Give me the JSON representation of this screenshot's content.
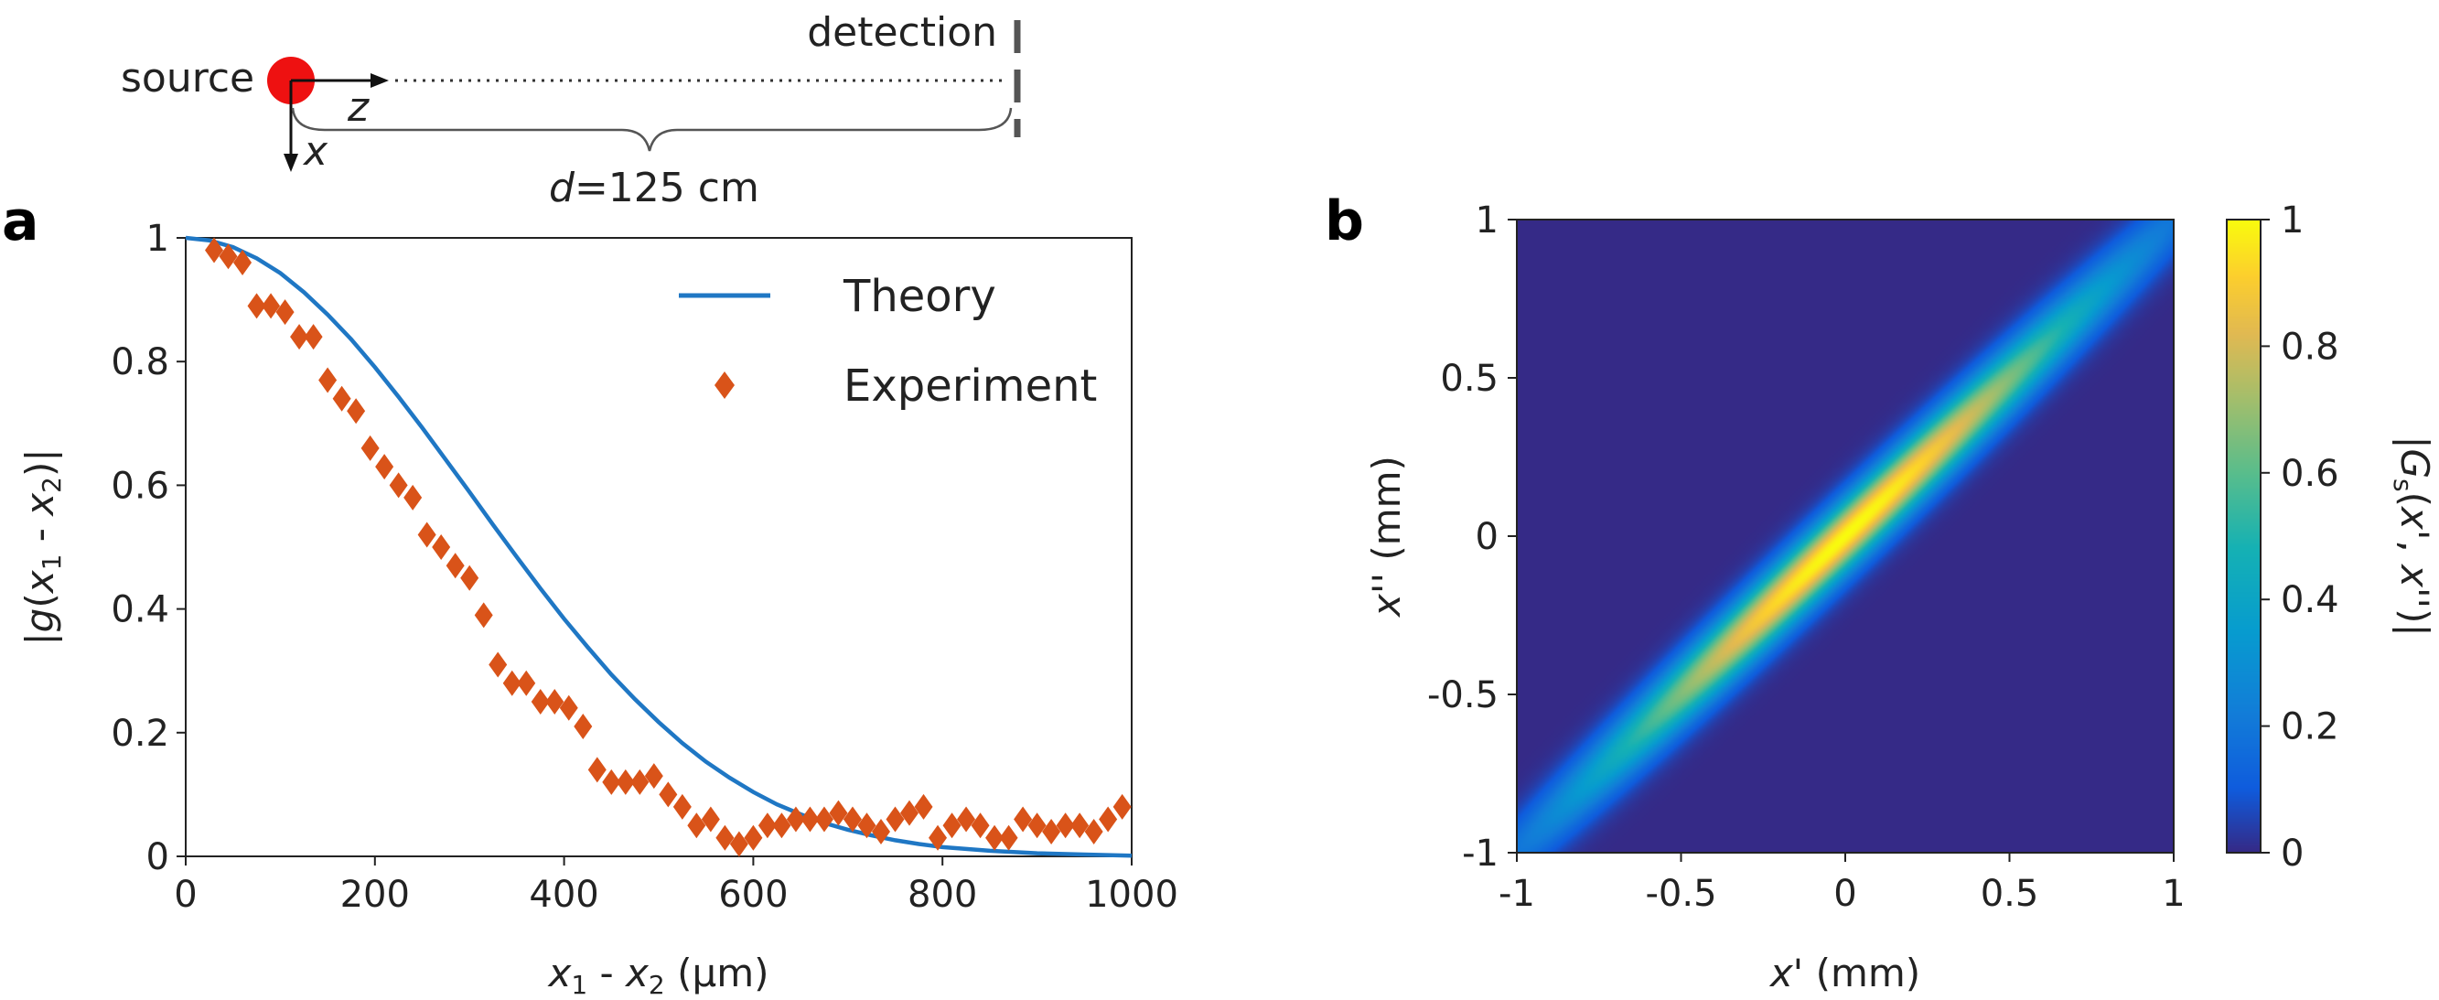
{
  "diagram": {
    "source_label": "source",
    "detection_label": "detection",
    "z_label": "z",
    "x_label": "x",
    "distance_label_var": "d",
    "distance_label_value": "=125 cm",
    "source_color": "#ee1111"
  },
  "panel_a_letter": "a",
  "panel_b_letter": "b",
  "chart_data": [
    {
      "type": "line",
      "panel": "a",
      "title": "",
      "xlabel": "x1 - x2 (μm)",
      "ylabel": "|g(x1 - x2)|",
      "xlim": [
        0,
        1000
      ],
      "ylim": [
        0,
        1
      ],
      "xticks": [
        0,
        200,
        400,
        600,
        800,
        1000
      ],
      "xtick_labels": [
        "0",
        "200",
        "400",
        "600",
        "800",
        "1000"
      ],
      "yticks": [
        0,
        0.2,
        0.4,
        0.6,
        0.8,
        1
      ],
      "ytick_labels": [
        "0",
        "0.2",
        "0.4",
        "0.6",
        "0.8",
        "1"
      ],
      "legend_position": "top-right",
      "series": [
        {
          "name": "Theory",
          "kind": "line",
          "color": "#1f77c4",
          "x": [
            0,
            25,
            50,
            75,
            100,
            125,
            150,
            175,
            200,
            225,
            250,
            275,
            300,
            325,
            350,
            375,
            400,
            425,
            450,
            475,
            500,
            525,
            550,
            575,
            600,
            625,
            650,
            675,
            700,
            725,
            750,
            775,
            800,
            850,
            900,
            950,
            1000
          ],
          "y": [
            1.0,
            0.996,
            0.985,
            0.967,
            0.943,
            0.912,
            0.876,
            0.836,
            0.791,
            0.743,
            0.693,
            0.641,
            0.589,
            0.536,
            0.484,
            0.433,
            0.384,
            0.338,
            0.294,
            0.254,
            0.217,
            0.183,
            0.153,
            0.127,
            0.104,
            0.084,
            0.068,
            0.054,
            0.043,
            0.034,
            0.026,
            0.02,
            0.015,
            0.009,
            0.005,
            0.003,
            0.001
          ]
        },
        {
          "name": "Experiment",
          "kind": "scatter",
          "marker": "diamond",
          "color": "#d95319",
          "x": [
            30,
            45,
            60,
            75,
            90,
            105,
            120,
            135,
            150,
            165,
            180,
            195,
            210,
            225,
            240,
            255,
            270,
            285,
            300,
            315,
            330,
            345,
            360,
            375,
            390,
            405,
            420,
            435,
            450,
            465,
            480,
            495,
            510,
            525,
            540,
            555,
            570,
            585,
            600,
            615,
            630,
            645,
            660,
            675,
            690,
            705,
            720,
            735,
            750,
            765,
            780,
            795,
            810,
            825,
            840,
            855,
            870,
            885,
            900,
            915,
            930,
            945,
            960,
            975,
            990
          ],
          "y": [
            0.98,
            0.97,
            0.96,
            0.89,
            0.89,
            0.88,
            0.84,
            0.84,
            0.77,
            0.74,
            0.72,
            0.66,
            0.63,
            0.6,
            0.58,
            0.52,
            0.5,
            0.47,
            0.45,
            0.39,
            0.31,
            0.28,
            0.28,
            0.25,
            0.25,
            0.24,
            0.21,
            0.14,
            0.12,
            0.12,
            0.12,
            0.13,
            0.1,
            0.08,
            0.05,
            0.06,
            0.03,
            0.02,
            0.03,
            0.05,
            0.05,
            0.06,
            0.06,
            0.06,
            0.07,
            0.06,
            0.05,
            0.04,
            0.06,
            0.07,
            0.08,
            0.03,
            0.05,
            0.06,
            0.05,
            0.03,
            0.03,
            0.06,
            0.05,
            0.04,
            0.05,
            0.05,
            0.04,
            0.06,
            0.08
          ]
        }
      ]
    },
    {
      "type": "heatmap",
      "panel": "b",
      "title": "",
      "xlabel": "x' (mm)",
      "ylabel": "x'' (mm)",
      "xlim": [
        -1,
        1
      ],
      "ylim": [
        -1,
        1
      ],
      "xticks": [
        -1,
        -0.5,
        0,
        0.5,
        1
      ],
      "xtick_labels": [
        "-1",
        "-0.5",
        "0",
        "0.5",
        "1"
      ],
      "yticks": [
        -1,
        -0.5,
        0,
        0.5,
        1
      ],
      "ytick_labels": [
        "-1",
        "-0.5",
        "0",
        "0.5",
        "1"
      ],
      "colorbar": {
        "label": "|Gs(x', x'')|",
        "range": [
          0,
          1
        ],
        "ticks": [
          0,
          0.2,
          0.4,
          0.6,
          0.8,
          1
        ],
        "tick_labels": [
          "0",
          "0.2",
          "0.4",
          "0.6",
          "0.8",
          "1"
        ],
        "colormap": "parula"
      },
      "description_fn": {
        "model": "gaussian_schell",
        "intensity_sigma_mm": 0.55,
        "coherence_width_mm": 0.08
      }
    }
  ]
}
